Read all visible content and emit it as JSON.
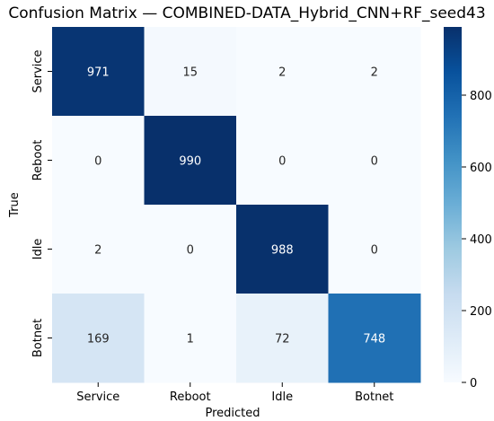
{
  "chart_data": {
    "type": "heatmap",
    "title": "Confusion Matrix — COMBINED-DATA_Hybrid_CNN+RF_seed43",
    "xlabel": "Predicted",
    "ylabel": "True",
    "x_categories": [
      "Service",
      "Reboot",
      "Idle",
      "Botnet"
    ],
    "y_categories": [
      "Service",
      "Reboot",
      "Idle",
      "Botnet"
    ],
    "values": [
      [
        971,
        15,
        2,
        2
      ],
      [
        0,
        990,
        0,
        0
      ],
      [
        2,
        0,
        988,
        0
      ],
      [
        169,
        1,
        72,
        748
      ]
    ],
    "colorbar": {
      "min": 0,
      "max": 990,
      "ticks": [
        0,
        200,
        400,
        600,
        800
      ],
      "colormap": "Blues",
      "low_color": "#f7fbff",
      "high_color": "#08306b"
    }
  }
}
